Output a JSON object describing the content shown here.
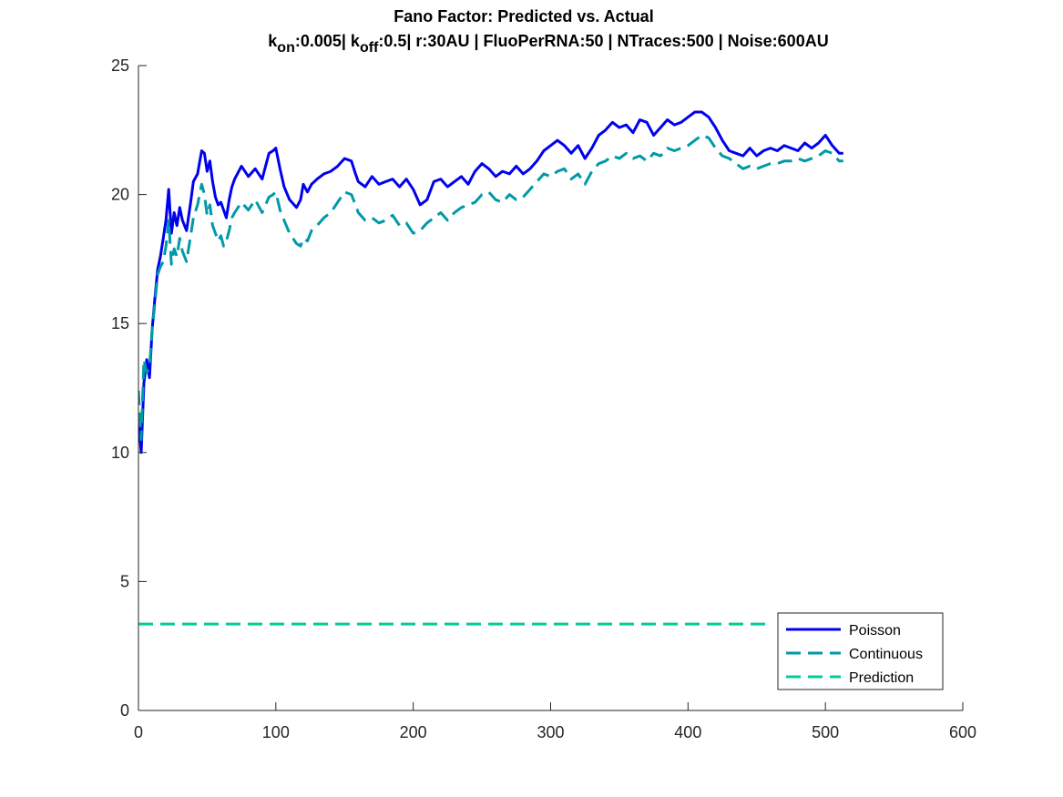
{
  "chart_data": {
    "type": "line",
    "title": "Fano Factor: Predicted vs. Actual",
    "subtitle_parts": [
      {
        "text": "k",
        "sub": false
      },
      {
        "text": "on",
        "sub": true
      },
      {
        "text": ":0.005| k",
        "sub": false
      },
      {
        "text": "off",
        "sub": true
      },
      {
        "text": ":0.5| r:30AU | FluoPerRNA:50 | NTraces:500 | Noise:600AU",
        "sub": false
      }
    ],
    "xlabel": "",
    "ylabel": "",
    "xlim": [
      0,
      600
    ],
    "ylim": [
      0,
      25
    ],
    "xticks": [
      0,
      100,
      200,
      300,
      400,
      500,
      600
    ],
    "yticks": [
      0,
      5,
      10,
      15,
      20,
      25
    ],
    "grid": false,
    "legend_position": "bottom-right",
    "series": [
      {
        "name": "Poisson",
        "style": "solid",
        "color": "#0000ee",
        "x": [
          0,
          2,
          4,
          6,
          8,
          10,
          12,
          14,
          16,
          18,
          20,
          22,
          24,
          26,
          28,
          30,
          32,
          35,
          38,
          40,
          43,
          46,
          48,
          50,
          52,
          54,
          56,
          58,
          60,
          62,
          64,
          66,
          68,
          70,
          75,
          80,
          85,
          90,
          95,
          98,
          100,
          103,
          106,
          110,
          115,
          118,
          120,
          123,
          126,
          130,
          135,
          140,
          145,
          150,
          155,
          158,
          160,
          165,
          170,
          175,
          180,
          185,
          190,
          195,
          200,
          205,
          210,
          215,
          220,
          225,
          230,
          235,
          240,
          245,
          250,
          255,
          260,
          265,
          270,
          275,
          280,
          285,
          290,
          295,
          300,
          305,
          310,
          315,
          320,
          325,
          330,
          335,
          340,
          345,
          350,
          355,
          360,
          365,
          370,
          375,
          380,
          385,
          390,
          395,
          400,
          405,
          410,
          415,
          420,
          425,
          430,
          435,
          440,
          445,
          450,
          455,
          460,
          465,
          470,
          475,
          480,
          485,
          490,
          495,
          500,
          505,
          510,
          513
        ],
        "y": [
          11.4,
          10.0,
          12.7,
          13.6,
          12.9,
          14.8,
          16.0,
          17.1,
          17.6,
          18.3,
          19.0,
          20.2,
          18.5,
          19.3,
          18.8,
          19.5,
          19.0,
          18.6,
          19.7,
          20.5,
          20.8,
          21.7,
          21.6,
          20.9,
          21.3,
          20.5,
          19.9,
          19.6,
          19.7,
          19.4,
          19.1,
          19.8,
          20.3,
          20.6,
          21.1,
          20.7,
          21.0,
          20.6,
          21.6,
          21.7,
          21.8,
          21.0,
          20.3,
          19.8,
          19.5,
          19.8,
          20.4,
          20.1,
          20.4,
          20.6,
          20.8,
          20.9,
          21.1,
          21.4,
          21.3,
          20.8,
          20.5,
          20.3,
          20.7,
          20.4,
          20.5,
          20.6,
          20.3,
          20.6,
          20.2,
          19.6,
          19.8,
          20.5,
          20.6,
          20.3,
          20.5,
          20.7,
          20.4,
          20.9,
          21.2,
          21.0,
          20.7,
          20.9,
          20.8,
          21.1,
          20.8,
          21.0,
          21.3,
          21.7,
          21.9,
          22.1,
          21.9,
          21.6,
          21.9,
          21.4,
          21.8,
          22.3,
          22.5,
          22.8,
          22.6,
          22.7,
          22.4,
          22.9,
          22.8,
          22.3,
          22.6,
          22.9,
          22.7,
          22.8,
          23.0,
          23.2,
          23.2,
          23.0,
          22.6,
          22.1,
          21.7,
          21.6,
          21.5,
          21.8,
          21.5,
          21.7,
          21.8,
          21.7,
          21.9,
          21.8,
          21.7,
          22.0,
          21.8,
          22.0,
          22.3,
          21.9,
          21.6,
          21.6
        ]
      },
      {
        "name": "Continuous",
        "style": "dashed",
        "color": "#0099a8",
        "x": [
          0,
          2,
          4,
          6,
          8,
          10,
          12,
          14,
          16,
          18,
          20,
          22,
          24,
          26,
          28,
          30,
          32,
          35,
          38,
          40,
          43,
          46,
          48,
          50,
          52,
          54,
          56,
          58,
          60,
          62,
          64,
          66,
          68,
          70,
          75,
          80,
          85,
          90,
          95,
          98,
          100,
          103,
          106,
          110,
          115,
          118,
          120,
          123,
          126,
          130,
          135,
          140,
          145,
          150,
          155,
          158,
          160,
          165,
          170,
          175,
          180,
          185,
          190,
          195,
          200,
          205,
          210,
          215,
          220,
          225,
          230,
          235,
          240,
          245,
          250,
          255,
          260,
          265,
          270,
          275,
          280,
          285,
          290,
          295,
          300,
          305,
          310,
          315,
          320,
          325,
          330,
          335,
          340,
          345,
          350,
          355,
          360,
          365,
          370,
          375,
          380,
          385,
          390,
          395,
          400,
          405,
          410,
          415,
          420,
          425,
          430,
          435,
          440,
          445,
          450,
          455,
          460,
          465,
          470,
          475,
          480,
          485,
          490,
          495,
          500,
          505,
          510,
          513
        ],
        "y": [
          12.4,
          10.5,
          13.6,
          13.1,
          13.3,
          14.8,
          15.8,
          16.9,
          17.2,
          17.4,
          18.0,
          19.0,
          17.3,
          17.9,
          17.6,
          18.3,
          17.8,
          17.4,
          18.4,
          19.1,
          19.6,
          20.4,
          20.0,
          19.2,
          19.6,
          18.8,
          18.5,
          18.2,
          18.4,
          18.0,
          18.2,
          18.6,
          19.1,
          19.3,
          19.7,
          19.4,
          19.8,
          19.3,
          19.9,
          20.0,
          20.1,
          19.4,
          19.0,
          18.5,
          18.1,
          18.0,
          18.3,
          18.2,
          18.6,
          18.8,
          19.1,
          19.3,
          19.7,
          20.1,
          20.0,
          19.6,
          19.3,
          19.0,
          19.1,
          18.9,
          19.0,
          19.2,
          18.8,
          18.9,
          18.5,
          18.6,
          18.9,
          19.1,
          19.3,
          19.0,
          19.3,
          19.5,
          19.6,
          19.7,
          20.0,
          20.1,
          19.8,
          19.7,
          20.0,
          19.8,
          19.9,
          20.2,
          20.5,
          20.8,
          20.7,
          20.9,
          21.0,
          20.6,
          20.8,
          20.4,
          20.9,
          21.2,
          21.3,
          21.5,
          21.4,
          21.6,
          21.4,
          21.5,
          21.3,
          21.6,
          21.5,
          21.8,
          21.7,
          21.8,
          21.9,
          22.1,
          22.3,
          22.2,
          21.8,
          21.5,
          21.4,
          21.2,
          21.0,
          21.1,
          21.0,
          21.1,
          21.2,
          21.2,
          21.3,
          21.3,
          21.4,
          21.3,
          21.4,
          21.5,
          21.7,
          21.6,
          21.3,
          21.3
        ]
      },
      {
        "name": "Prediction",
        "style": "dashed",
        "color": "#00cc99",
        "x": [
          0,
          460
        ],
        "y": [
          3.35,
          3.35
        ]
      }
    ]
  }
}
